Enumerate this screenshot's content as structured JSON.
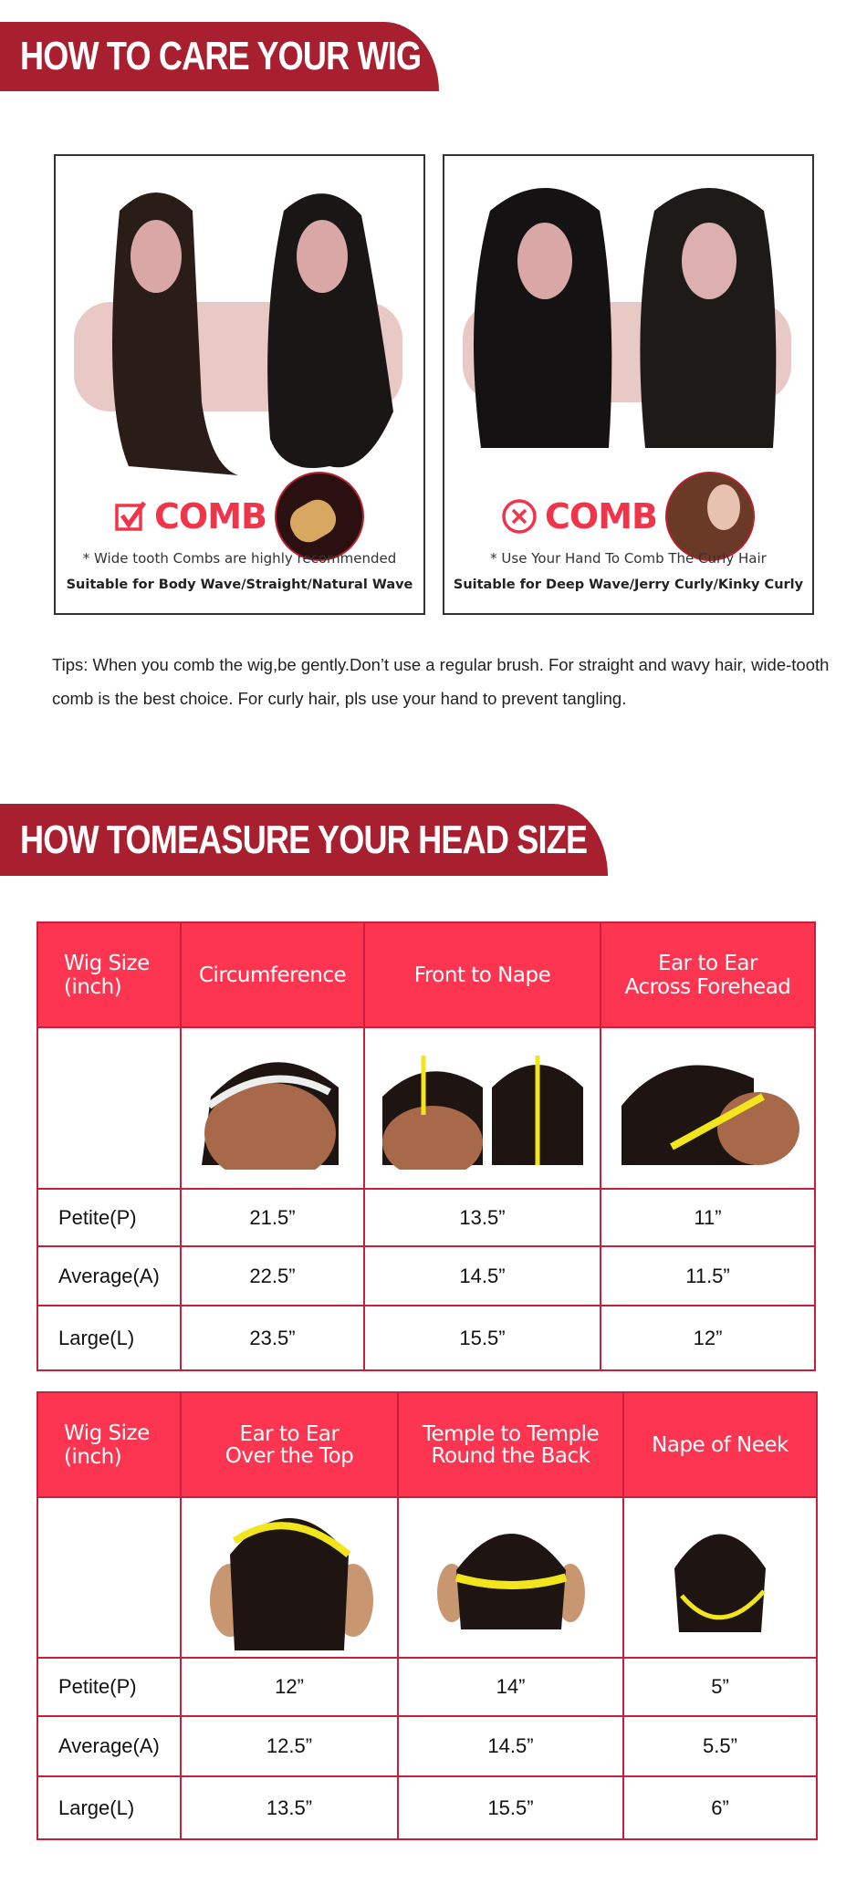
{
  "care": {
    "title": "HOW TO CARE YOUR WIG",
    "cards": [
      {
        "icon": "checkbox-check-icon",
        "comb_label": "COMB",
        "note": "* Wide tooth Combs are highly recommended",
        "suitable": "Suitable for Body Wave/Straight/Natural Wave"
      },
      {
        "icon": "circle-x-icon",
        "comb_label": "COMB",
        "note": "* Use Your Hand To Comb The Curly Hair",
        "suitable": "Suitable for Deep Wave/Jerry Curly/Kinky Curly"
      }
    ],
    "tips": "Tips: When you comb the wig,be gently.Don’t use a regular brush. For straight and wavy hair, wide-tooth comb is the best choice. For curly hair, pls use your hand to prevent tangling."
  },
  "measure": {
    "title": "HOW TOMEASURE YOUR HEAD SIZE",
    "table1": {
      "headers": [
        "Wig Size\n(inch)",
        "Circumference",
        "Front to Nape",
        "Ear to Ear\nAcross Forehead"
      ],
      "rows": [
        [
          "Petite(P)",
          "21.5”",
          "13.5”",
          "11”"
        ],
        [
          "Average(A)",
          "22.5”",
          "14.5”",
          "11.5”"
        ],
        [
          "Large(L)",
          "23.5”",
          "15.5”",
          "12”"
        ]
      ]
    },
    "table2": {
      "headers": [
        "Wig Size\n(inch)",
        "Ear to Ear\nOver the Top",
        "Temple to Temple\nRound the Back",
        "Nape of Neek"
      ],
      "rows": [
        [
          "Petite(P)",
          "12”",
          "14”",
          "5”"
        ],
        [
          "Average(A)",
          "12.5”",
          "14.5”",
          "5.5”"
        ],
        [
          "Large(L)",
          "13.5”",
          "15.5”",
          "6”"
        ]
      ]
    }
  },
  "colors": {
    "banner": "#a8202f",
    "header": "#fd3550",
    "border": "#c8203a",
    "accent": "#f0344a",
    "tape": "#f3e51b"
  }
}
